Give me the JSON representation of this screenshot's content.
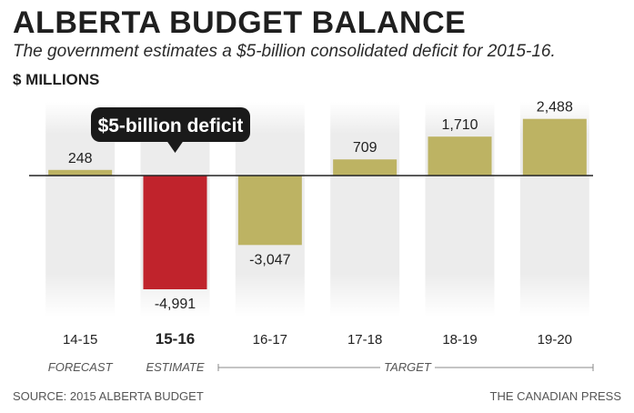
{
  "header": {
    "title": "ALBERTA BUDGET BALANCE",
    "subtitle": "The government estimates a $5-billion consolidated deficit for 2015-16.",
    "unit": "$ MILLIONS"
  },
  "footer": {
    "source": "SOURCE: 2015 ALBERTA BUDGET",
    "credit": "THE CANADIAN PRESS"
  },
  "colors": {
    "bar": "#bdb363",
    "highlight_bar": "#c0232c",
    "column_bg": "#ececec",
    "callout_bg": "#1a1a1a",
    "callout_text": "#ffffff"
  },
  "chart_data": {
    "type": "bar",
    "categories": [
      "14-15",
      "15-16",
      "16-17",
      "17-18",
      "18-19",
      "19-20"
    ],
    "values": [
      248,
      -4991,
      -3047,
      709,
      1710,
      2488
    ],
    "value_labels": [
      "248",
      "-4,991",
      "-3,047",
      "709",
      "1,710",
      "2,488"
    ],
    "highlight_index": 1,
    "callout": "$5-billion deficit",
    "period_labels": {
      "forecast": "FORECAST",
      "estimate": "ESTIMATE",
      "target": "TARGET"
    },
    "ylim": [
      -5500,
      3000
    ]
  }
}
